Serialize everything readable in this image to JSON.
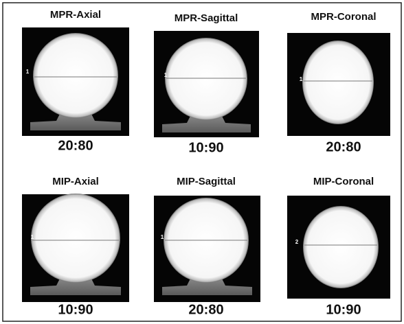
{
  "panels": [
    {
      "title": "MPR-Axial",
      "ratio": "20:80",
      "marker": "1"
    },
    {
      "title": "MPR-Sagittal",
      "ratio": "10:90",
      "marker": "1"
    },
    {
      "title": "MPR-Coronal",
      "ratio": "20:80",
      "marker": "1"
    },
    {
      "title": "MIP-Axial",
      "ratio": "10:90",
      "marker": "1"
    },
    {
      "title": "MIP-Sagittal",
      "ratio": "20:80",
      "marker": "1"
    },
    {
      "title": "MIP-Coronal",
      "ratio": "10:90",
      "marker": "2"
    }
  ]
}
